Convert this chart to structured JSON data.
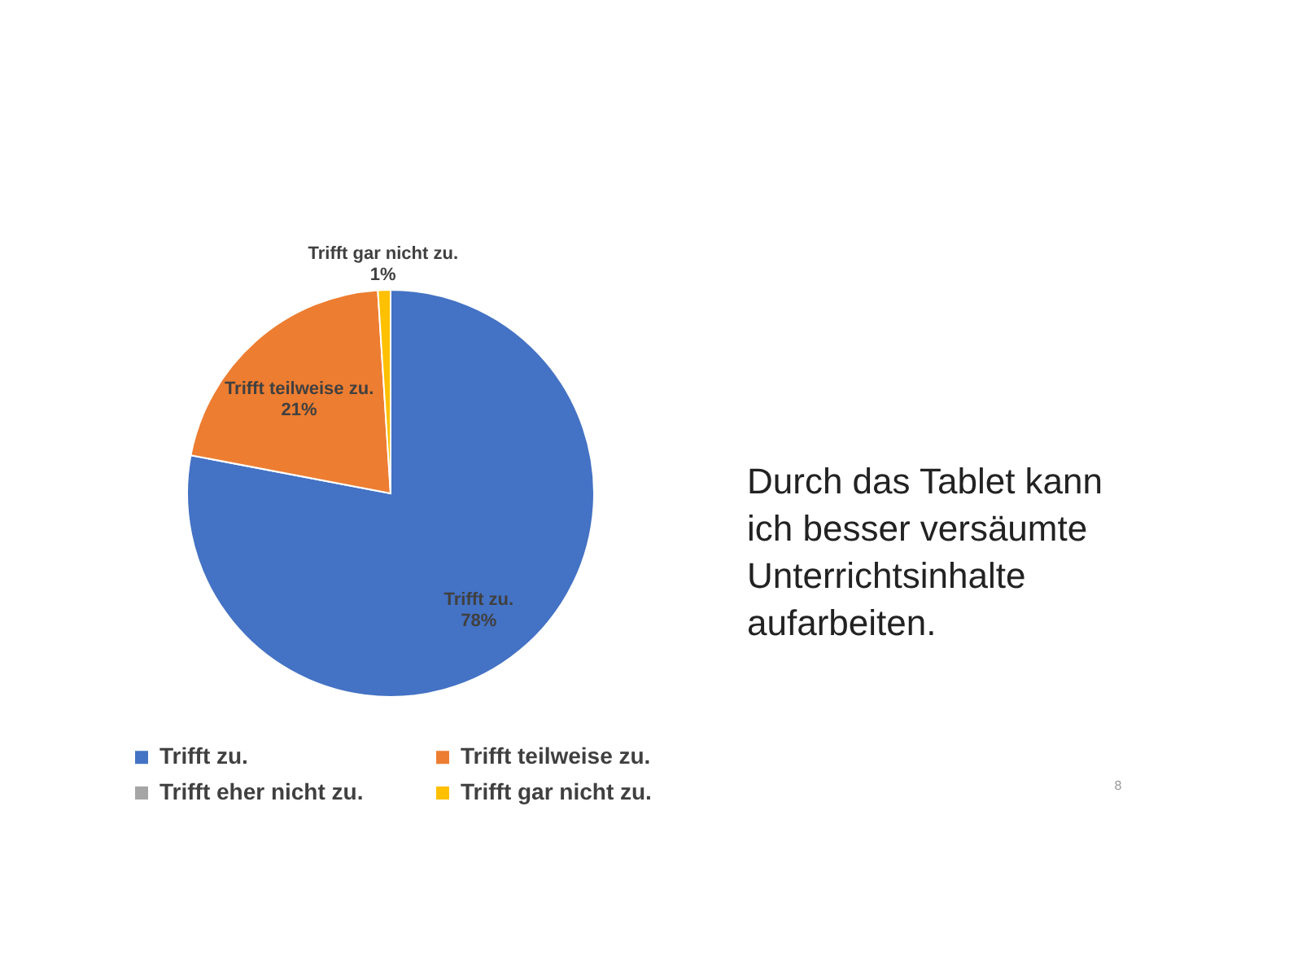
{
  "chart_data": {
    "type": "pie",
    "title": "Durch das Tablet kann ich besser versäumte Unterrichtsinhalte aufarbeiten.",
    "categories": [
      "Trifft zu.",
      "Trifft teilweise zu.",
      "Trifft eher nicht zu.",
      "Trifft gar nicht zu."
    ],
    "values": [
      78,
      21,
      0,
      1
    ],
    "colors": [
      "#4472c4",
      "#ed7d31",
      "#a5a5a5",
      "#ffc000"
    ],
    "value_labels": [
      "78%",
      "21%",
      null,
      "1%"
    ],
    "legend": "bottom",
    "annotations": [
      "8"
    ]
  }
}
